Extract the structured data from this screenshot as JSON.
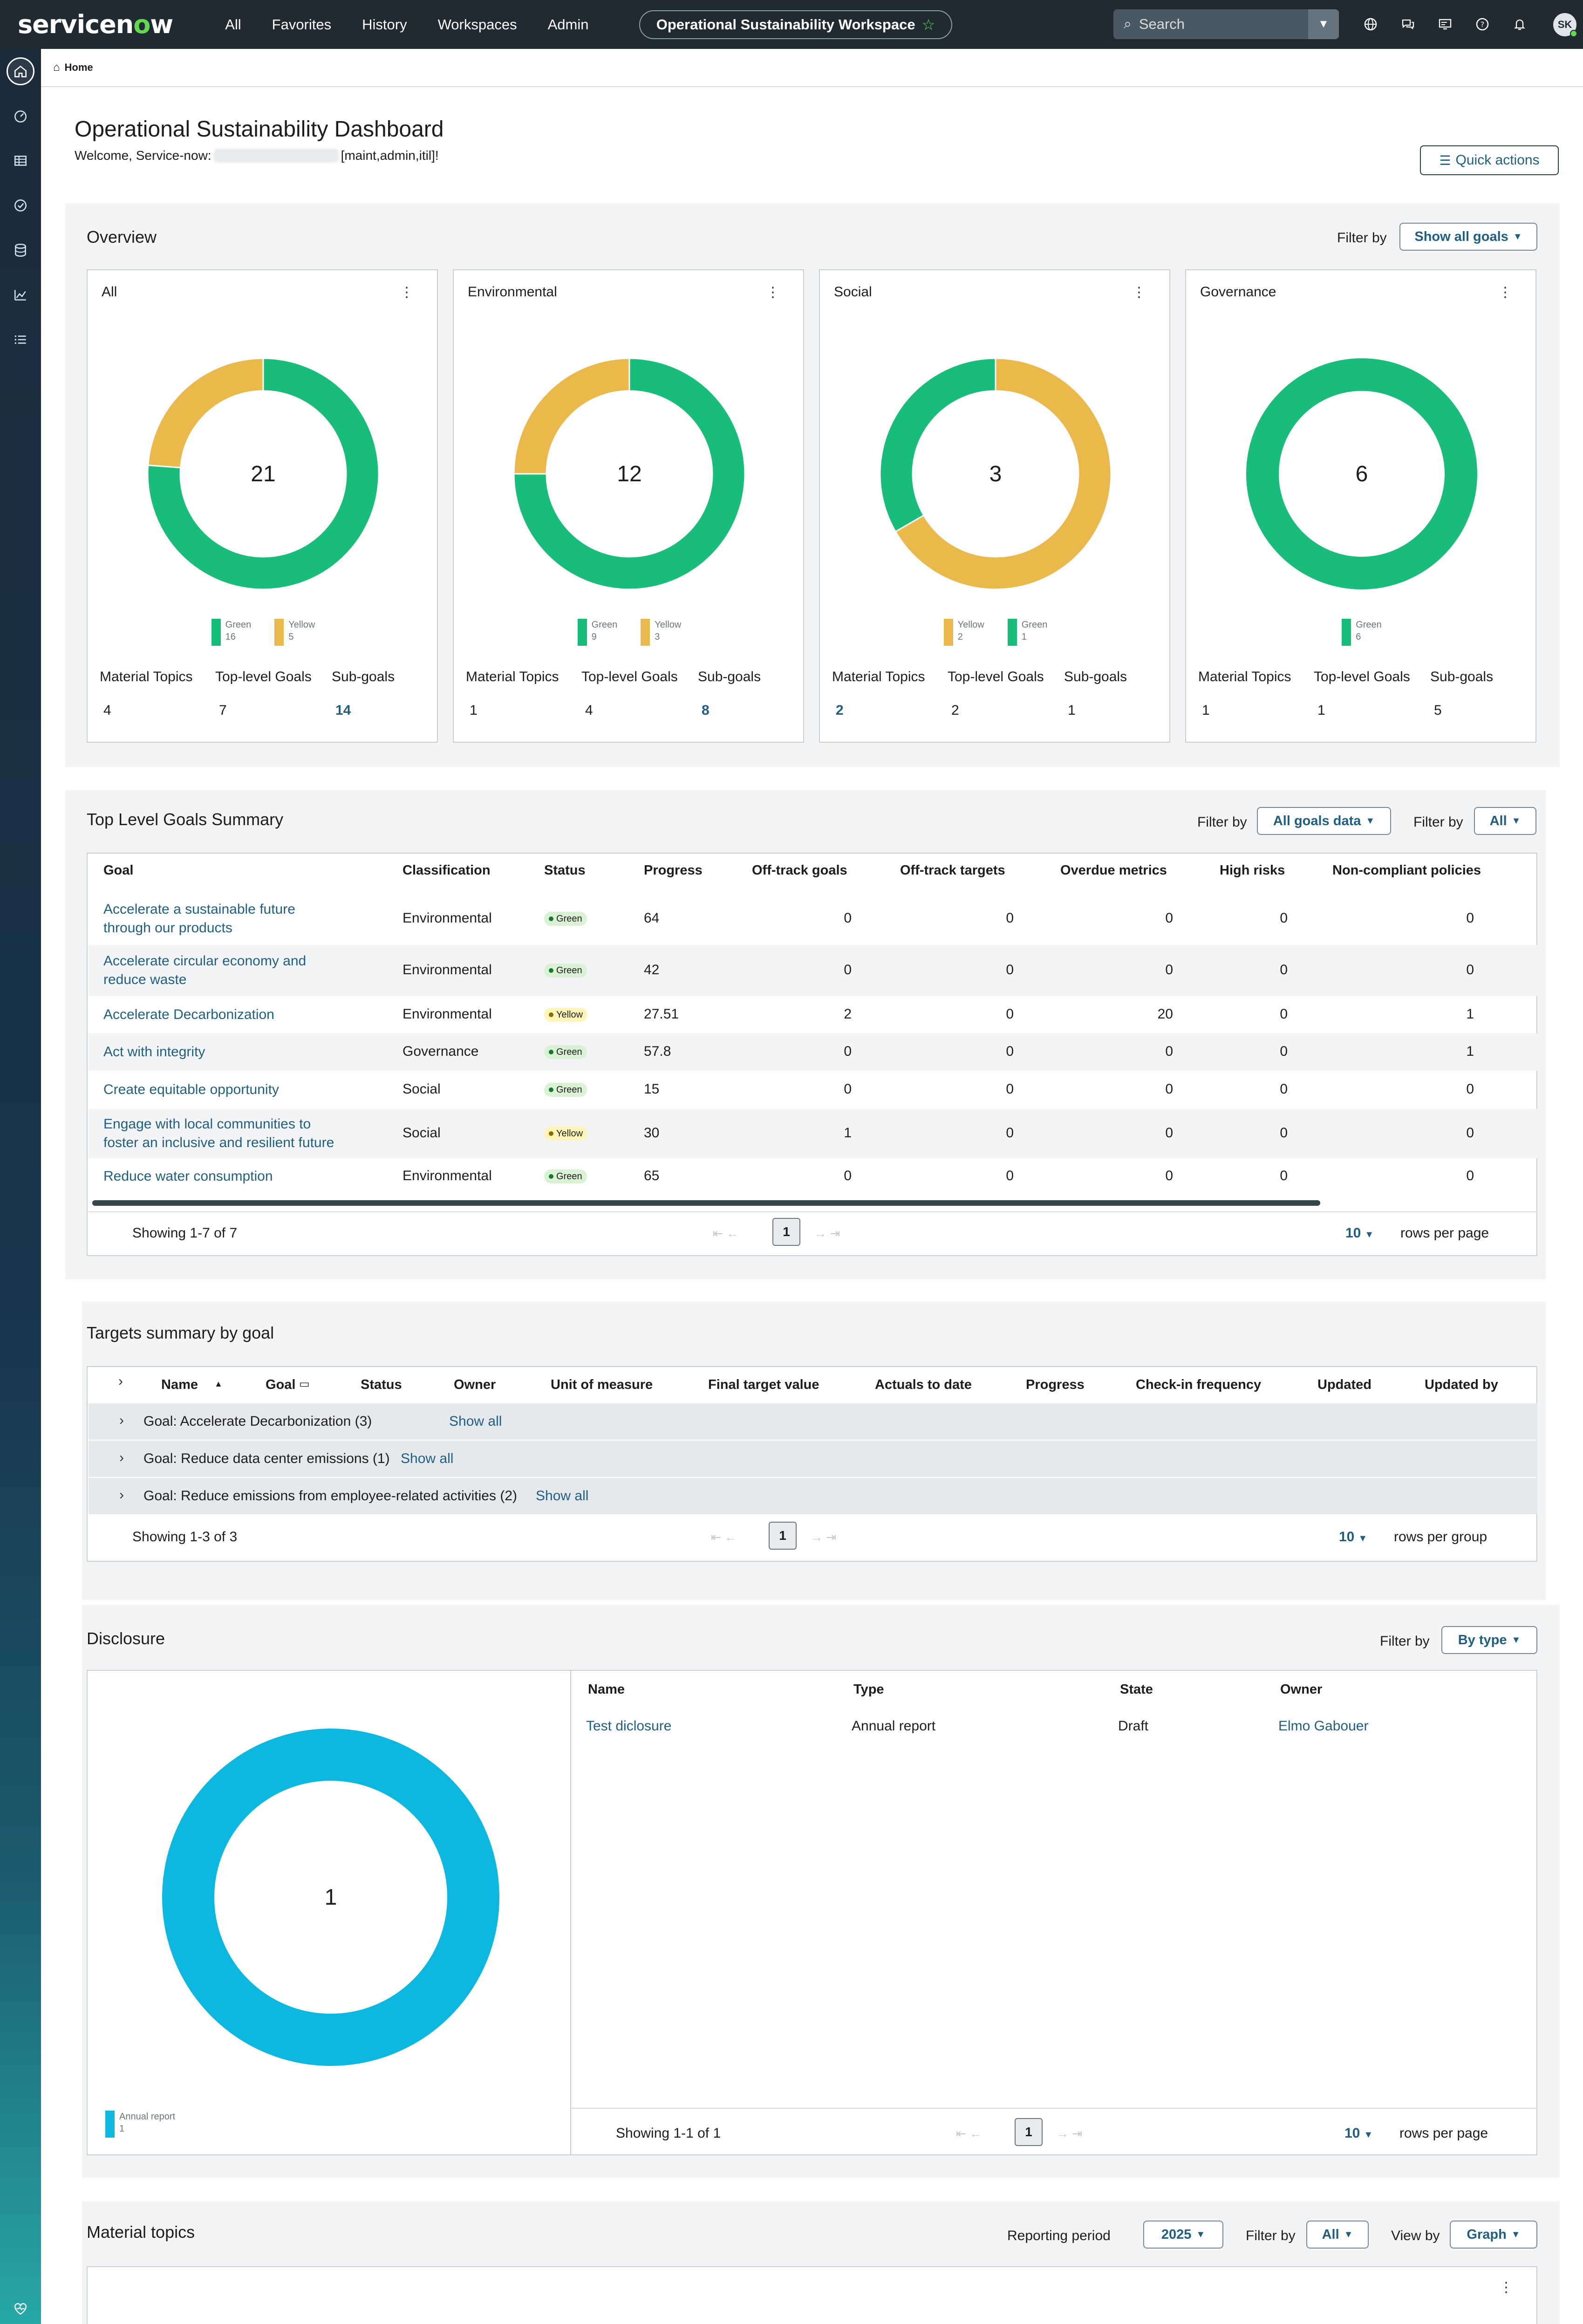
{
  "header": {
    "logo_text_a": "servicen",
    "logo_text_o": "o",
    "logo_text_b": "w",
    "nav": [
      "All",
      "Favorites",
      "History",
      "Workspaces",
      "Admin"
    ],
    "workspace": "Operational Sustainability Workspace",
    "search_placeholder": "Search",
    "avatar_initials": "SK",
    "icons": [
      "globe-icon",
      "chat-icon",
      "screen-icon",
      "help-icon",
      "bell-icon"
    ]
  },
  "breadcrumb": {
    "home": "Home"
  },
  "page": {
    "title": "Operational Sustainability Dashboard",
    "welcome_prefix": "Welcome, Service-now:",
    "welcome_suffix": "[maint,admin,itil]!",
    "quick_actions": "Quick actions"
  },
  "overview": {
    "title": "Overview",
    "filter_label": "Filter by",
    "filter_value": "Show all goals",
    "stat_labels": [
      "Material Topics",
      "Top-level Goals",
      "Sub-goals"
    ],
    "cards": [
      {
        "title": "All",
        "total": "21",
        "green": 16,
        "yellow": 5,
        "legend": [
          {
            "label": "Green",
            "value": "16",
            "color": "#17bd78"
          },
          {
            "label": "Yellow",
            "value": "5",
            "color": "#ebb84c"
          }
        ],
        "stats": [
          "4",
          "7",
          "14"
        ]
      },
      {
        "title": "Environmental",
        "total": "12",
        "green": 9,
        "yellow": 3,
        "legend": [
          {
            "label": "Green",
            "value": "9",
            "color": "#17bd78"
          },
          {
            "label": "Yellow",
            "value": "3",
            "color": "#ebb84c"
          }
        ],
        "stats": [
          "1",
          "4",
          "8"
        ]
      },
      {
        "title": "Social",
        "total": "3",
        "green": 1,
        "yellow": 2,
        "legend": [
          {
            "label": "Yellow",
            "value": "2",
            "color": "#ebb84c"
          },
          {
            "label": "Green",
            "value": "1",
            "color": "#17bd78"
          }
        ],
        "stats": [
          "2",
          "2",
          "1"
        ]
      },
      {
        "title": "Governance",
        "total": "6",
        "green": 6,
        "yellow": 0,
        "legend": [
          {
            "label": "Green",
            "value": "6",
            "color": "#17bd78"
          }
        ],
        "stats": [
          "1",
          "1",
          "5"
        ]
      }
    ]
  },
  "top_goals": {
    "title": "Top Level Goals Summary",
    "filter_label": "Filter by",
    "filter1": "All goals data",
    "filter2": "All",
    "columns": [
      "Goal",
      "Classification",
      "Status",
      "Progress",
      "Off-track goals",
      "Off-track targets",
      "Overdue metrics",
      "High risks",
      "Non-compliant policies"
    ],
    "rows": [
      {
        "goal": [
          "Accelerate a sustainable future",
          "through our products"
        ],
        "classification": "Environmental",
        "status": "Green",
        "progress": "64",
        "off_goals": "0",
        "off_targets": "0",
        "overdue": "0",
        "risks": "0",
        "policies": "0"
      },
      {
        "goal": [
          "Accelerate circular economy and",
          "reduce waste"
        ],
        "classification": "Environmental",
        "status": "Green",
        "progress": "42",
        "off_goals": "0",
        "off_targets": "0",
        "overdue": "0",
        "risks": "0",
        "policies": "0"
      },
      {
        "goal": [
          "Accelerate Decarbonization"
        ],
        "classification": "Environmental",
        "status": "Yellow",
        "progress": "27.51",
        "off_goals": "2",
        "off_targets": "0",
        "overdue": "20",
        "risks": "0",
        "policies": "1"
      },
      {
        "goal": [
          "Act with integrity"
        ],
        "classification": "Governance",
        "status": "Green",
        "progress": "57.8",
        "off_goals": "0",
        "off_targets": "0",
        "overdue": "0",
        "risks": "0",
        "policies": "1"
      },
      {
        "goal": [
          "Create equitable opportunity"
        ],
        "classification": "Social",
        "status": "Green",
        "progress": "15",
        "off_goals": "0",
        "off_targets": "0",
        "overdue": "0",
        "risks": "0",
        "policies": "0"
      },
      {
        "goal": [
          "Engage with local communities to",
          "foster an inclusive and resilient future"
        ],
        "classification": "Social",
        "status": "Yellow",
        "progress": "30",
        "off_goals": "1",
        "off_targets": "0",
        "overdue": "0",
        "risks": "0",
        "policies": "0"
      },
      {
        "goal": [
          "Reduce water consumption"
        ],
        "classification": "Environmental",
        "status": "Green",
        "progress": "65",
        "off_goals": "0",
        "off_targets": "0",
        "overdue": "0",
        "risks": "0",
        "policies": "0"
      }
    ],
    "showing": "Showing 1-7 of 7",
    "page": "1",
    "rows_per_page": "10",
    "rows_label": "rows per page"
  },
  "targets": {
    "title": "Targets summary by goal",
    "columns": [
      "Name",
      "Goal",
      "Status",
      "Owner",
      "Unit of measure",
      "Final target value",
      "Actuals to date",
      "Progress",
      "Check-in frequency",
      "Updated",
      "Updated by"
    ],
    "groups": [
      {
        "label": "Goal: Accelerate Decarbonization (3)",
        "link": "Show all"
      },
      {
        "label": "Goal: Reduce data center emissions (1)",
        "link": "Show all"
      },
      {
        "label": "Goal: Reduce emissions from employee-related activities (2)",
        "link": "Show all"
      }
    ],
    "showing": "Showing 1-3 of 3",
    "page": "1",
    "rows_per_page": "10",
    "rows_label": "rows per group"
  },
  "disclosure": {
    "title": "Disclosure",
    "filter_label": "Filter by",
    "filter_value": "By type",
    "chart_data": {
      "type": "pie",
      "categories": [
        "Annual report"
      ],
      "values": [
        1
      ],
      "total": "1",
      "colors": [
        "#0cb8e0"
      ]
    },
    "legend": {
      "label": "Annual report",
      "value": "1"
    },
    "columns": [
      "Name",
      "Type",
      "State",
      "Owner"
    ],
    "rows": [
      {
        "name": "Test diclosure",
        "type": "Annual report",
        "state": "Draft",
        "owner": "Elmo Gabouer"
      }
    ],
    "showing": "Showing 1-1 of 1",
    "page": "1",
    "rows_per_page": "10",
    "rows_label": "rows per page"
  },
  "material": {
    "title": "Material topics",
    "period_label": "Reporting period",
    "period_value": "2025",
    "filter_label": "Filter by",
    "filter_value": "All",
    "view_label": "View by",
    "view_value": "Graph"
  },
  "overview_chart_data": {
    "type": "pie",
    "charts": [
      {
        "title": "All",
        "categories": [
          "Green",
          "Yellow"
        ],
        "values": [
          16,
          5
        ]
      },
      {
        "title": "Environmental",
        "categories": [
          "Green",
          "Yellow"
        ],
        "values": [
          9,
          3
        ]
      },
      {
        "title": "Social",
        "categories": [
          "Yellow",
          "Green"
        ],
        "values": [
          2,
          1
        ]
      },
      {
        "title": "Governance",
        "categories": [
          "Green"
        ],
        "values": [
          6
        ]
      }
    ],
    "colors": {
      "Green": "#17bd78",
      "Yellow": "#ebb84c"
    }
  }
}
